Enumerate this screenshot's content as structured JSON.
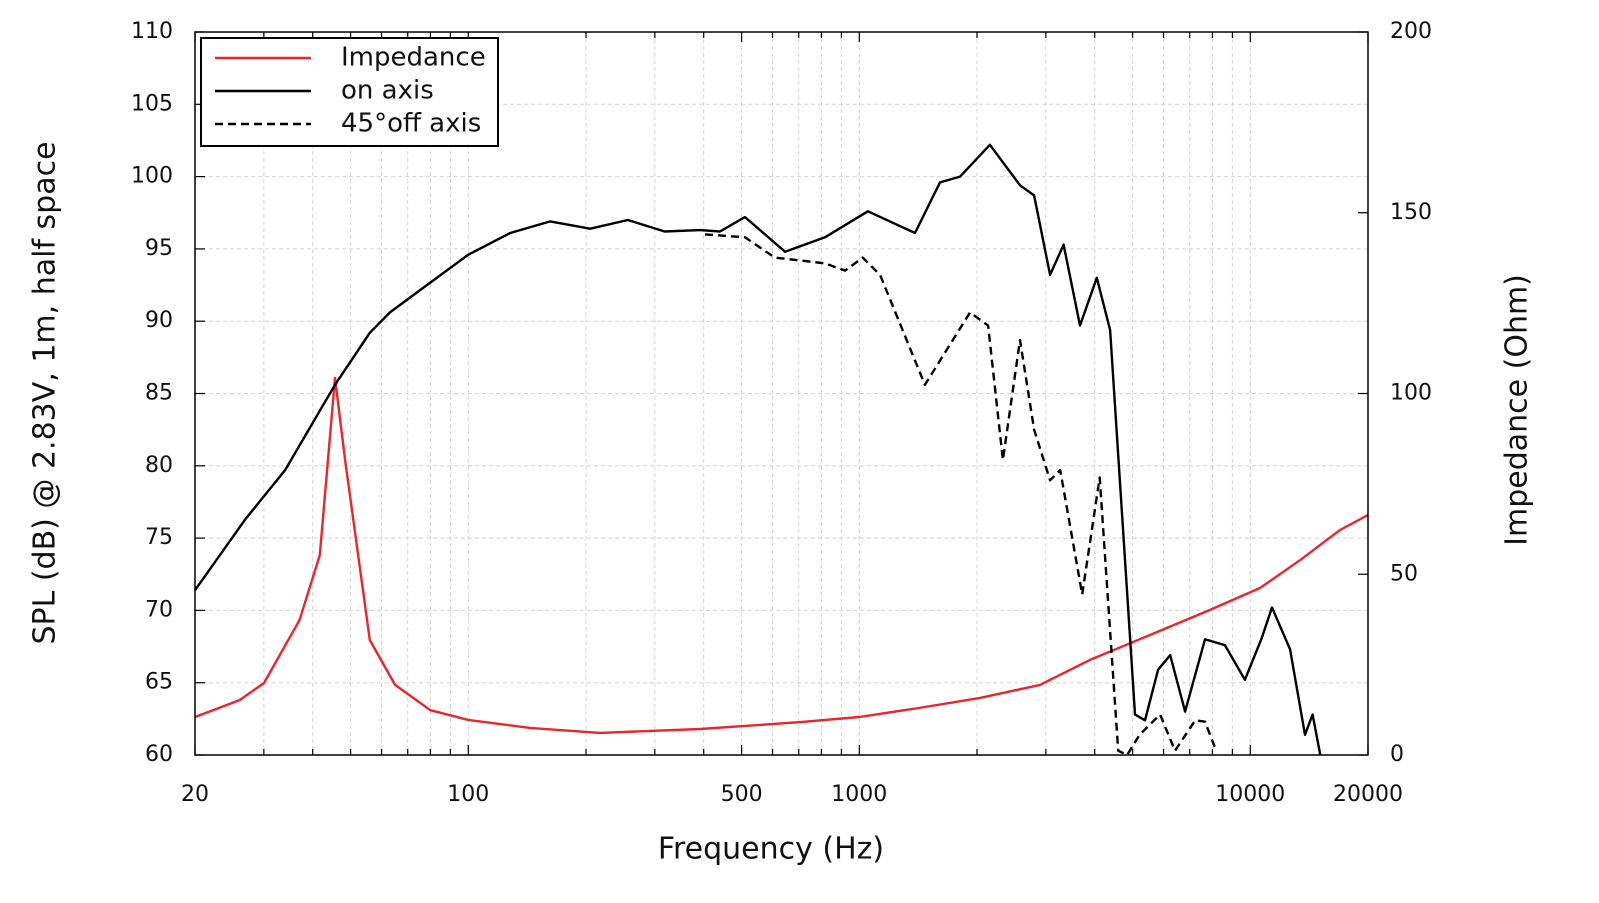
{
  "chart_data": {
    "type": "line",
    "xlabel": "Frequency (Hz)",
    "ylabel": "SPL (dB) @ 2.83V, 1m, half space",
    "y2label": "Impedance (Ohm)",
    "xscale": "log",
    "xlim": [
      20,
      20000
    ],
    "xticks": [
      20,
      100,
      500,
      1000,
      10000,
      20000
    ],
    "xminorticks": [
      30,
      40,
      50,
      60,
      70,
      80,
      90,
      200,
      300,
      400,
      600,
      700,
      800,
      900,
      2000,
      3000,
      4000,
      5000,
      6000,
      7000,
      8000,
      9000
    ],
    "ylim": [
      60,
      110
    ],
    "yticks": [
      60,
      65,
      70,
      75,
      80,
      85,
      90,
      95,
      100,
      105,
      110
    ],
    "y2lim": [
      0,
      200
    ],
    "y2ticks": [
      0,
      50,
      100,
      150,
      200
    ],
    "grid": true,
    "legend": "upper left",
    "series": [
      {
        "name": "Impedance",
        "color": "#e8262b",
        "linestyle": "solid",
        "axis": "y2",
        "x": [
          20,
          26,
          30,
          37,
          41.7,
          45.6,
          48.4,
          56,
          65,
          80,
          100,
          144,
          217,
          392,
          708,
          1000,
          1420,
          2037,
          2897,
          3890,
          5540,
          7880,
          10590,
          13400,
          16950,
          20000
        ],
        "values": [
          10.5,
          15.2,
          19.9,
          37.3,
          55.3,
          104.3,
          81.6,
          31.8,
          19.4,
          12.4,
          9.7,
          7.5,
          6.1,
          7.2,
          9.1,
          10.5,
          13.0,
          15.8,
          19.4,
          26.3,
          33.2,
          40.1,
          46.2,
          53.9,
          62.2,
          66.4
        ]
      },
      {
        "name": "on axis",
        "color": "#000000",
        "linestyle": "solid",
        "x": [
          20,
          26.9,
          34,
          45.6,
          56,
          63,
          77.5,
          100,
          128,
          162,
          205,
          256,
          318,
          392,
          440,
          510,
          646,
          817,
          1052,
          1388,
          1608,
          1811,
          2158,
          2577,
          2800,
          3076,
          3330,
          3668,
          4050,
          4380,
          4780,
          5070,
          5380,
          5810,
          6240,
          6810,
          7660,
          8610,
          9690,
          10700,
          11360,
          12640,
          13800,
          14430,
          15100
        ],
        "values": [
          71.4,
          76.3,
          79.7,
          85.6,
          89.2,
          90.6,
          92.4,
          94.6,
          96.1,
          96.9,
          96.4,
          97.0,
          96.2,
          96.3,
          96.2,
          97.2,
          94.8,
          95.8,
          97.6,
          96.1,
          99.6,
          100.0,
          102.2,
          99.4,
          98.7,
          93.2,
          95.3,
          89.7,
          93.0,
          89.4,
          73.5,
          62.8,
          62.4,
          65.9,
          66.9,
          63.0,
          68.0,
          67.6,
          65.2,
          68.1,
          70.2,
          67.3,
          61.4,
          62.8,
          60.0
        ]
      },
      {
        "name": "45°off axis",
        "color": "#000000",
        "linestyle": "dashed",
        "x": [
          403,
          510,
          608,
          708,
          817,
          920,
          1020,
          1130,
          1472,
          1919,
          2135,
          2330,
          2577,
          2800,
          3076,
          3265,
          3715,
          4120,
          4594,
          4840,
          5210,
          5880,
          6420,
          7230,
          7660,
          8130
        ],
        "values": [
          96.0,
          95.8,
          94.4,
          94.2,
          94.0,
          93.5,
          94.4,
          93.2,
          85.6,
          90.6,
          89.7,
          80.4,
          88.7,
          82.5,
          79.0,
          79.7,
          71.1,
          79.2,
          60.3,
          60.0,
          61.4,
          62.8,
          60.3,
          62.4,
          62.3,
          60.5
        ]
      }
    ]
  }
}
